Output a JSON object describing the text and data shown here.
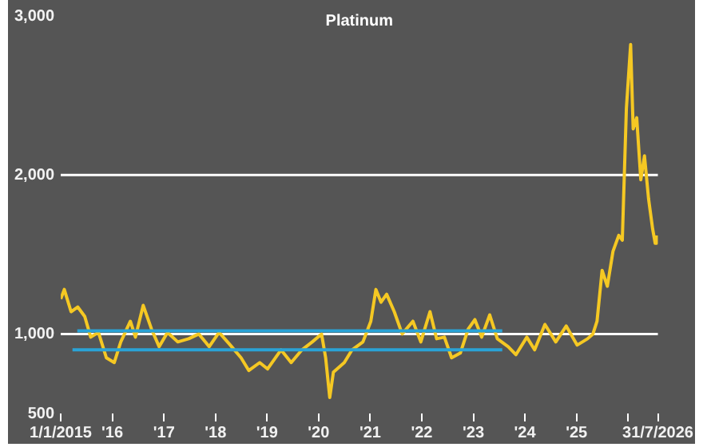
{
  "chart_data": {
    "type": "line",
    "title": "Platinum",
    "marker": "none",
    "xlim": [
      "2015-01-01",
      "2026-07-31"
    ],
    "xticks": [
      {
        "value": "2015-01-01",
        "label": "1/1/2015"
      },
      {
        "value": "2016-01-01",
        "label": "'16"
      },
      {
        "value": "2017-01-01",
        "label": "'17"
      },
      {
        "value": "2018-01-01",
        "label": "'18"
      },
      {
        "value": "2019-01-01",
        "label": "'19"
      },
      {
        "value": "2020-01-01",
        "label": "'20"
      },
      {
        "value": "2021-01-01",
        "label": "'21"
      },
      {
        "value": "2022-01-01",
        "label": "'22"
      },
      {
        "value": "2023-01-01",
        "label": "'23"
      },
      {
        "value": "2024-01-01",
        "label": "'24"
      },
      {
        "value": "2025-01-01",
        "label": "'25"
      },
      {
        "value": "2026-01-01",
        "label": null
      },
      {
        "value": "2026-07-31",
        "label": "31/7/2026"
      }
    ],
    "ylim": [
      500,
      3000
    ],
    "yticks": [
      {
        "value": 500,
        "label": "500"
      },
      {
        "value": 1000,
        "label": "1,000"
      },
      {
        "value": 2000,
        "label": "2,000"
      },
      {
        "value": 3000,
        "label": "3,000"
      }
    ],
    "ref_lines": [
      {
        "axis": "y",
        "value": 1000,
        "label": null,
        "color": "#ffffff"
      },
      {
        "axis": "y",
        "value": 2000,
        "label": null,
        "color": "#ffffff"
      }
    ],
    "series": [
      {
        "color": "#2aa3d6",
        "x": [
          "2015-04-28",
          "2023-07-25"
        ],
        "values": [
          1020,
          1020
        ]
      },
      {
        "color": "#2aa3d6",
        "x": [
          "2015-03-25",
          "2023-07-25"
        ],
        "values": [
          900,
          900
        ]
      },
      {
        "color": "#f5c823",
        "x": [
          "2015-01-01",
          "2015-01-26",
          "2015-03-15",
          "2015-05-01",
          "2015-06-20",
          "2015-08-01",
          "2015-09-25",
          "2015-11-20",
          "2016-01-15",
          "2016-03-01",
          "2016-05-08",
          "2016-06-13",
          "2016-08-07",
          "2016-10-05",
          "2016-11-28",
          "2017-01-26",
          "2017-04-09",
          "2017-06-25",
          "2017-09-05",
          "2017-11-17",
          "2018-01-26",
          "2018-04-16",
          "2018-07-01",
          "2018-08-25",
          "2018-11-10",
          "2019-01-05",
          "2019-04-10",
          "2019-06-21",
          "2019-09-05",
          "2019-11-17",
          "2020-01-22",
          "2020-02-20",
          "2020-03-20",
          "2020-04-15",
          "2020-07-01",
          "2020-08-25",
          "2020-11-10",
          "2021-01-05",
          "2021-02-10",
          "2021-03-18",
          "2021-04-27",
          "2021-06-20",
          "2021-08-15",
          "2021-10-30",
          "2021-12-25",
          "2022-02-28",
          "2022-04-16",
          "2022-06-10",
          "2022-07-31",
          "2022-10-01",
          "2022-11-25",
          "2023-01-12",
          "2023-03-01",
          "2023-04-27",
          "2023-06-20",
          "2023-09-05",
          "2023-10-30",
          "2024-01-15",
          "2024-03-10",
          "2024-05-22",
          "2024-08-07",
          "2024-10-20",
          "2025-01-05",
          "2025-03-20",
          "2025-04-27",
          "2025-05-26",
          "2025-07-01",
          "2025-08-07",
          "2025-09-16",
          "2025-10-27",
          "2025-11-21",
          "2025-12-20",
          "2026-01-19",
          "2026-02-06",
          "2026-03-03",
          "2026-04-01",
          "2026-04-27",
          "2026-05-26",
          "2026-06-24",
          "2026-07-12",
          "2026-07-22"
        ],
        "values": [
          1220,
          1280,
          1140,
          1170,
          1110,
          980,
          1010,
          850,
          820,
          950,
          1080,
          980,
          1180,
          1030,
          920,
          1010,
          950,
          970,
          1000,
          920,
          1010,
          930,
          850,
          770,
          820,
          780,
          900,
          820,
          900,
          950,
          1000,
          850,
          600,
          760,
          820,
          900,
          950,
          1080,
          1280,
          1200,
          1250,
          1140,
          1000,
          1080,
          950,
          1140,
          970,
          980,
          850,
          880,
          1030,
          1090,
          980,
          1120,
          970,
          920,
          870,
          980,
          900,
          1060,
          950,
          1050,
          930,
          970,
          1000,
          1080,
          1400,
          1300,
          1520,
          1620,
          1590,
          2420,
          2820,
          2290,
          2360,
          1970,
          2120,
          1850,
          1660,
          1570,
          1620
        ]
      }
    ]
  }
}
